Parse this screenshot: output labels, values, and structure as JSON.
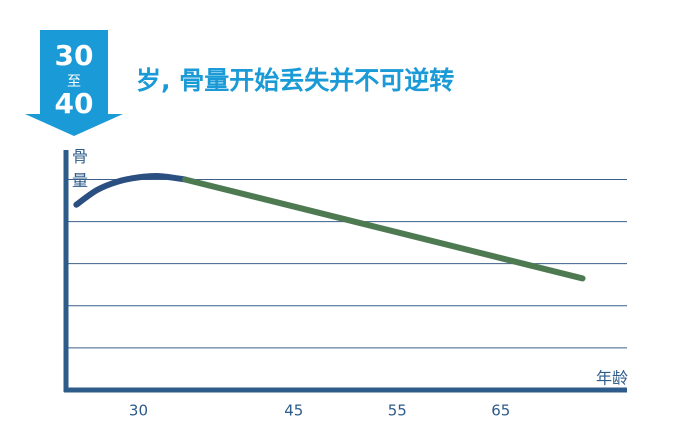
{
  "badge": {
    "top": "30",
    "middle": "至",
    "bottom": "40"
  },
  "chart_data": {
    "type": "line",
    "title": "岁, 骨量开始丢失并不可逆转",
    "y_label": "骨量",
    "x_label": "年龄",
    "xlim": [
      23,
      77
    ],
    "xticks": [
      30,
      45,
      55,
      65
    ],
    "ylim": [
      0,
      5.7
    ],
    "yticks": [
      1,
      2,
      3,
      4,
      5
    ],
    "ytick_labels": false,
    "grid": true,
    "series": [
      {
        "color": "#2b4f80",
        "x": [
          24,
          26,
          28,
          30,
          32,
          34.5
        ],
        "values": [
          4.4,
          4.75,
          4.95,
          5.05,
          5.08,
          5.0
        ]
      },
      {
        "color": "#4e7a52",
        "x": [
          34.5,
          72.9
        ],
        "values": [
          5.0,
          2.65
        ]
      }
    ]
  }
}
